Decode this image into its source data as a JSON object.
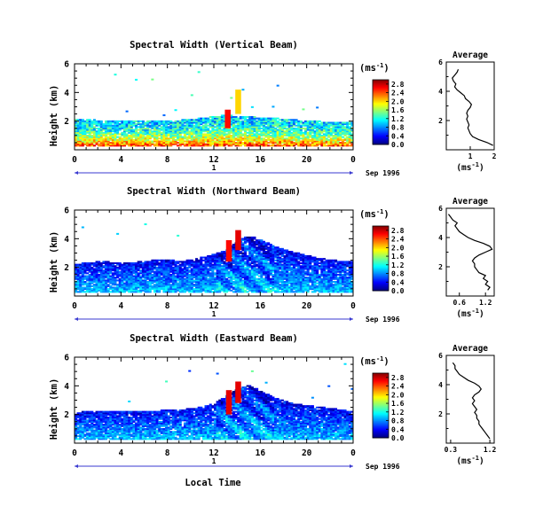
{
  "figure": {
    "xlabel": "Local Time",
    "ylabel": "Height (km)",
    "unit_label": "(ms",
    "unit_exp": "-1",
    "unit_close": ")",
    "avg_title": "Average",
    "date_label": "Sep 1996",
    "day_label": "1"
  },
  "chart_data": [
    {
      "type": "heatmap",
      "title": "Spectral Width (Vertical Beam)",
      "xlabel": "Local Time",
      "ylabel": "Height (km)",
      "xlim": [
        0,
        24
      ],
      "ylim": [
        0,
        6
      ],
      "xticks": [
        "0",
        "4",
        "8",
        "12",
        "16",
        "20",
        "0"
      ],
      "yticks": [
        "2",
        "4",
        "6"
      ],
      "colorbar_ticks": [
        "0.0",
        "0.4",
        "0.8",
        "1.2",
        "1.6",
        "2.0",
        "2.4",
        "2.8"
      ],
      "colorbar_range": [
        0,
        3.0
      ],
      "top_edge": [
        2.1,
        2.1,
        2.05,
        2.0,
        2.0,
        2.0,
        2.05,
        2.05,
        2.0,
        2.05,
        2.1,
        2.2,
        2.3,
        2.4,
        2.3,
        2.3,
        2.2,
        2.2,
        2.1,
        2.05,
        2.0,
        1.95,
        1.95,
        1.9,
        1.9
      ],
      "features": [
        {
          "x": 13.2,
          "y0": 1.5,
          "y1": 2.8,
          "v": 2.6
        },
        {
          "x": 14.1,
          "y0": 2.5,
          "y1": 4.2,
          "v": 2.0
        }
      ],
      "average_profile": {
        "title": "Average",
        "xlabel": "(ms-1)",
        "xlim": [
          0,
          2
        ],
        "xticks": [
          "1",
          "2"
        ],
        "ylim": [
          0,
          6
        ],
        "yticks": [
          "2",
          "4",
          "6"
        ],
        "height_km": [
          0.3,
          0.5,
          0.7,
          0.9,
          1.1,
          1.3,
          1.5,
          1.7,
          1.9,
          2.1,
          2.3,
          2.5,
          2.7,
          2.9,
          3.1,
          3.3,
          3.5,
          3.7,
          3.9,
          4.1,
          4.3,
          4.5,
          4.7,
          4.9,
          5.1,
          5.3,
          5.5
        ],
        "width_ms": [
          1.95,
          1.7,
          1.35,
          1.1,
          1.0,
          0.95,
          0.9,
          0.95,
          0.9,
          0.85,
          0.9,
          0.85,
          0.9,
          1.0,
          1.05,
          0.95,
          0.8,
          0.75,
          0.6,
          0.45,
          0.35,
          0.4,
          0.3,
          0.25,
          0.35,
          0.45,
          0.5
        ]
      }
    },
    {
      "type": "heatmap",
      "title": "Spectral Width (Northward Beam)",
      "xlabel": "Local Time",
      "ylabel": "Height (km)",
      "xlim": [
        0,
        24
      ],
      "ylim": [
        0,
        6
      ],
      "xticks": [
        "0",
        "4",
        "8",
        "12",
        "16",
        "20",
        "0"
      ],
      "yticks": [
        "2",
        "4",
        "6"
      ],
      "colorbar_ticks": [
        "0.0",
        "0.4",
        "0.8",
        "1.2",
        "1.6",
        "2.0",
        "2.4",
        "2.8"
      ],
      "colorbar_range": [
        0,
        3.0
      ],
      "top_edge": [
        2.2,
        2.3,
        2.4,
        2.35,
        2.3,
        2.35,
        2.4,
        2.5,
        2.5,
        2.4,
        2.5,
        2.7,
        2.9,
        3.2,
        3.9,
        4.2,
        3.9,
        3.5,
        3.2,
        3.0,
        2.8,
        2.6,
        2.5,
        2.4,
        2.35
      ],
      "features": [
        {
          "x": 13.3,
          "y0": 2.4,
          "y1": 3.9,
          "v": 2.6
        },
        {
          "x": 14.1,
          "y0": 3.2,
          "y1": 4.6,
          "v": 2.7
        }
      ],
      "average_profile": {
        "title": "Average",
        "xlabel": "(ms-1)",
        "xlim": [
          0.3,
          1.4
        ],
        "xticks": [
          "0.6",
          "1.2"
        ],
        "ylim": [
          0,
          6
        ],
        "yticks": [
          "2",
          "4",
          "6"
        ],
        "height_km": [
          0.4,
          0.6,
          0.8,
          1.0,
          1.2,
          1.4,
          1.6,
          1.8,
          2.0,
          2.2,
          2.4,
          2.6,
          2.8,
          3.0,
          3.2,
          3.4,
          3.6,
          3.8,
          4.0,
          4.2,
          4.4,
          4.6,
          4.8,
          5.0,
          5.2,
          5.4,
          5.6
        ],
        "width_ms": [
          1.25,
          1.3,
          1.2,
          1.25,
          1.15,
          1.2,
          1.05,
          1.0,
          0.95,
          0.95,
          0.9,
          0.95,
          1.05,
          1.2,
          1.35,
          1.3,
          1.15,
          0.95,
          0.8,
          0.7,
          0.6,
          0.55,
          0.5,
          0.55,
          0.45,
          0.4,
          0.35
        ]
      }
    },
    {
      "type": "heatmap",
      "title": "Spectral Width (Eastward Beam)",
      "xlabel": "Local Time",
      "ylabel": "Height (km)",
      "xlim": [
        0,
        24
      ],
      "ylim": [
        0,
        6
      ],
      "xticks": [
        "0",
        "4",
        "8",
        "12",
        "16",
        "20",
        "0"
      ],
      "yticks": [
        "2",
        "4",
        "6"
      ],
      "colorbar_ticks": [
        "0.0",
        "0.4",
        "0.8",
        "1.2",
        "1.6",
        "2.0",
        "2.4",
        "2.8"
      ],
      "colorbar_range": [
        0,
        3.0
      ],
      "top_edge": [
        2.1,
        2.2,
        2.2,
        2.25,
        2.2,
        2.2,
        2.2,
        2.25,
        2.3,
        2.3,
        2.4,
        2.5,
        2.8,
        3.3,
        3.8,
        4.0,
        3.6,
        3.2,
        2.9,
        2.7,
        2.6,
        2.5,
        2.4,
        2.3,
        2.2
      ],
      "features": [
        {
          "x": 13.3,
          "y0": 2.0,
          "y1": 3.7,
          "v": 2.7
        },
        {
          "x": 14.1,
          "y0": 2.8,
          "y1": 4.3,
          "v": 2.7
        }
      ],
      "average_profile": {
        "title": "Average",
        "xlabel": "(ms-1)",
        "xlim": [
          0.2,
          1.3
        ],
        "xticks": [
          "0.3",
          "1.2"
        ],
        "ylim": [
          0,
          6
        ],
        "yticks": [
          "2",
          "4",
          "6"
        ],
        "height_km": [
          0.3,
          0.5,
          0.7,
          0.9,
          1.1,
          1.3,
          1.5,
          1.7,
          1.9,
          2.1,
          2.3,
          2.5,
          2.7,
          2.9,
          3.1,
          3.3,
          3.5,
          3.7,
          3.9,
          4.1,
          4.3,
          4.5,
          4.7,
          4.9,
          5.1,
          5.3,
          5.5
        ],
        "width_ms": [
          1.2,
          1.15,
          1.1,
          1.05,
          1.0,
          0.95,
          0.95,
          0.9,
          0.9,
          0.85,
          0.9,
          0.85,
          0.8,
          0.85,
          0.8,
          0.85,
          0.95,
          1.0,
          0.95,
          0.85,
          0.7,
          0.6,
          0.5,
          0.45,
          0.4,
          0.4,
          0.35
        ]
      }
    }
  ]
}
